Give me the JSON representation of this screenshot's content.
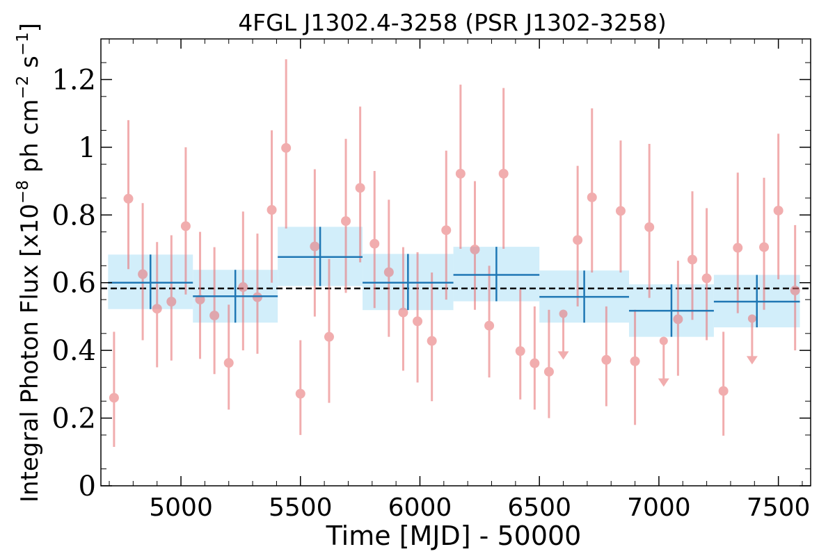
{
  "chart_data": {
    "type": "scatter",
    "title": "4FGL J1302.4-3258 (PSR J1302-3258)",
    "xlabel": "Time [MJD] - 50000",
    "ylabel": "Integral Photon Flux [x10^-8 ph cm^-2 s^-1]",
    "xlim": [
      4665,
      7635
    ],
    "ylim": [
      0,
      1.32
    ],
    "xticks": [
      5000,
      5500,
      6000,
      6500,
      7000,
      7500
    ],
    "xtick_labels": [
      "5000",
      "5500",
      "6000",
      "6500",
      "7000",
      "7500"
    ],
    "yticks": [
      0,
      0.2,
      0.4,
      0.6,
      0.8,
      1.0,
      1.2
    ],
    "ytick_labels": [
      "0",
      "0.2",
      "0.4",
      "0.6",
      "0.8",
      "1",
      "1.2"
    ],
    "mean_flux": 0.583,
    "colors": {
      "short_bins": "#e8777a",
      "long_bins": "#1f77b4",
      "long_bin_band": "#d2eefa",
      "mean_line": "#000000"
    },
    "short_bins": [
      {
        "x": 4720,
        "y": 0.26,
        "lo": 0.115,
        "hi": 0.455
      },
      {
        "x": 4780,
        "y": 0.848,
        "lo": 0.64,
        "hi": 1.08
      },
      {
        "x": 4840,
        "y": 0.625,
        "lo": 0.43,
        "hi": 0.835
      },
      {
        "x": 4900,
        "y": 0.523,
        "lo": 0.35,
        "hi": 0.72
      },
      {
        "x": 4960,
        "y": 0.544,
        "lo": 0.37,
        "hi": 0.74
      },
      {
        "x": 5020,
        "y": 0.767,
        "lo": 0.565,
        "hi": 1.0
      },
      {
        "x": 5080,
        "y": 0.55,
        "lo": 0.375,
        "hi": 0.75
      },
      {
        "x": 5140,
        "y": 0.503,
        "lo": 0.33,
        "hi": 0.705
      },
      {
        "x": 5200,
        "y": 0.363,
        "lo": 0.225,
        "hi": 0.535
      },
      {
        "x": 5260,
        "y": 0.587,
        "lo": 0.4,
        "hi": 0.81
      },
      {
        "x": 5320,
        "y": 0.557,
        "lo": 0.39,
        "hi": 0.745
      },
      {
        "x": 5380,
        "y": 0.815,
        "lo": 0.6,
        "hi": 1.05
      },
      {
        "x": 5440,
        "y": 0.998,
        "lo": 0.76,
        "hi": 1.26
      },
      {
        "x": 5500,
        "y": 0.272,
        "lo": 0.15,
        "hi": 0.43
      },
      {
        "x": 5560,
        "y": 0.707,
        "lo": 0.5,
        "hi": 0.935
      },
      {
        "x": 5620,
        "y": 0.44,
        "lo": 0.245,
        "hi": 0.67
      },
      {
        "x": 5690,
        "y": 0.782,
        "lo": 0.57,
        "hi": 1.025
      },
      {
        "x": 5750,
        "y": 0.88,
        "lo": 0.66,
        "hi": 1.12
      },
      {
        "x": 5810,
        "y": 0.715,
        "lo": 0.525,
        "hi": 0.93
      },
      {
        "x": 5870,
        "y": 0.631,
        "lo": 0.44,
        "hi": 0.845
      },
      {
        "x": 5930,
        "y": 0.512,
        "lo": 0.34,
        "hi": 0.705
      },
      {
        "x": 5990,
        "y": 0.486,
        "lo": 0.305,
        "hi": 0.69
      },
      {
        "x": 6050,
        "y": 0.428,
        "lo": 0.25,
        "hi": 0.63
      },
      {
        "x": 6110,
        "y": 0.755,
        "lo": 0.55,
        "hi": 0.99
      },
      {
        "x": 6170,
        "y": 0.922,
        "lo": 0.7,
        "hi": 1.185
      },
      {
        "x": 6230,
        "y": 0.698,
        "lo": 0.52,
        "hi": 0.9
      },
      {
        "x": 6290,
        "y": 0.473,
        "lo": 0.32,
        "hi": 0.65
      },
      {
        "x": 6350,
        "y": 0.922,
        "lo": 0.7,
        "hi": 1.175
      },
      {
        "x": 6420,
        "y": 0.398,
        "lo": 0.255,
        "hi": 0.58
      },
      {
        "x": 6480,
        "y": 0.362,
        "lo": 0.225,
        "hi": 0.53
      },
      {
        "x": 6540,
        "y": 0.337,
        "lo": 0.2,
        "hi": 0.52
      },
      {
        "x": 6600,
        "y": 0.508,
        "upper_limit": true
      },
      {
        "x": 6660,
        "y": 0.726,
        "lo": 0.53,
        "hi": 0.945
      },
      {
        "x": 6720,
        "y": 0.852,
        "lo": 0.63,
        "hi": 1.115
      },
      {
        "x": 6780,
        "y": 0.372,
        "lo": 0.235,
        "hi": 0.53
      },
      {
        "x": 6840,
        "y": 0.812,
        "lo": 0.63,
        "hi": 1.02
      },
      {
        "x": 6900,
        "y": 0.368,
        "lo": 0.18,
        "hi": 0.52
      },
      {
        "x": 6960,
        "y": 0.764,
        "lo": 0.555,
        "hi": 1.01
      },
      {
        "x": 7020,
        "y": 0.428,
        "upper_limit": true
      },
      {
        "x": 7080,
        "y": 0.492,
        "lo": 0.325,
        "hi": 0.665
      },
      {
        "x": 7140,
        "y": 0.668,
        "lo": 0.49,
        "hi": 0.87
      },
      {
        "x": 7200,
        "y": 0.613,
        "lo": 0.43,
        "hi": 0.82
      },
      {
        "x": 7270,
        "y": 0.28,
        "lo": 0.148,
        "hi": 0.455
      },
      {
        "x": 7330,
        "y": 0.703,
        "lo": 0.51,
        "hi": 0.925
      },
      {
        "x": 7390,
        "y": 0.494,
        "upper_limit": true
      },
      {
        "x": 7440,
        "y": 0.705,
        "lo": 0.52,
        "hi": 0.91
      },
      {
        "x": 7500,
        "y": 0.813,
        "lo": 0.61,
        "hi": 1.04
      },
      {
        "x": 7570,
        "y": 0.577,
        "lo": 0.4,
        "hi": 0.77
      }
    ],
    "long_bins": [
      {
        "x_start": 4695,
        "x_end": 5050,
        "y": 0.6,
        "lo": 0.522,
        "hi": 0.683
      },
      {
        "x_start": 5050,
        "x_end": 5405,
        "y": 0.56,
        "lo": 0.482,
        "hi": 0.638
      },
      {
        "x_start": 5405,
        "x_end": 5760,
        "y": 0.676,
        "lo": 0.59,
        "hi": 0.765
      },
      {
        "x_start": 5760,
        "x_end": 6140,
        "y": 0.6,
        "lo": 0.519,
        "hi": 0.685
      },
      {
        "x_start": 6140,
        "x_end": 6500,
        "y": 0.623,
        "lo": 0.545,
        "hi": 0.706
      },
      {
        "x_start": 6500,
        "x_end": 6875,
        "y": 0.558,
        "lo": 0.482,
        "hi": 0.636
      },
      {
        "x_start": 6875,
        "x_end": 7230,
        "y": 0.517,
        "lo": 0.44,
        "hi": 0.595
      },
      {
        "x_start": 7230,
        "x_end": 7590,
        "y": 0.544,
        "lo": 0.468,
        "hi": 0.623
      }
    ]
  }
}
